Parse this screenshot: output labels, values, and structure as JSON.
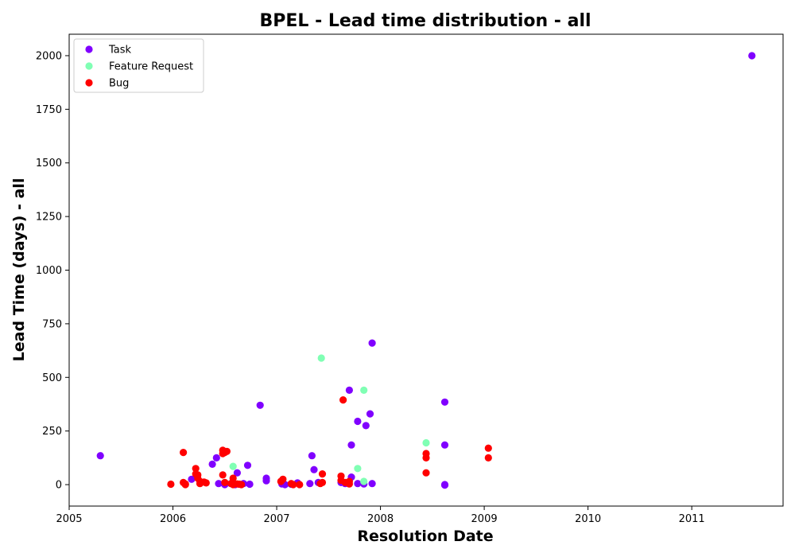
{
  "chart_data": {
    "type": "scatter",
    "title": "BPEL - Lead time distribution - all",
    "xlabel": "Resolution Date",
    "ylabel": "Lead Time (days) - all",
    "xlim": [
      2005.0,
      2011.88
    ],
    "ylim": [
      -100,
      2100
    ],
    "x_ticks": [
      2005,
      2006,
      2007,
      2008,
      2009,
      2010,
      2011
    ],
    "x_tick_labels": [
      "2005",
      "2006",
      "2007",
      "2008",
      "2009",
      "2010",
      "2011"
    ],
    "y_ticks": [
      0,
      250,
      500,
      750,
      1000,
      1250,
      1500,
      1750,
      2000
    ],
    "y_tick_labels": [
      "0",
      "250",
      "500",
      "750",
      "1000",
      "1250",
      "1500",
      "1750",
      "2000"
    ],
    "grid": false,
    "legend_position": "top-left",
    "series": [
      {
        "name": "Task",
        "color": "#8000ff",
        "points": [
          [
            2005.3,
            135
          ],
          [
            2006.18,
            25
          ],
          [
            2006.38,
            95
          ],
          [
            2006.42,
            125
          ],
          [
            2006.44,
            5
          ],
          [
            2006.5,
            0
          ],
          [
            2006.56,
            5
          ],
          [
            2006.6,
            0
          ],
          [
            2006.62,
            55
          ],
          [
            2006.68,
            5
          ],
          [
            2006.72,
            90
          ],
          [
            2006.74,
            2
          ],
          [
            2006.84,
            370
          ],
          [
            2006.9,
            30
          ],
          [
            2006.9,
            18
          ],
          [
            2007.05,
            3
          ],
          [
            2007.08,
            0
          ],
          [
            2007.14,
            2
          ],
          [
            2007.2,
            8
          ],
          [
            2007.32,
            5
          ],
          [
            2007.34,
            135
          ],
          [
            2007.36,
            70
          ],
          [
            2007.4,
            10
          ],
          [
            2007.62,
            10
          ],
          [
            2007.66,
            5
          ],
          [
            2007.7,
            440
          ],
          [
            2007.72,
            185
          ],
          [
            2007.72,
            35
          ],
          [
            2007.78,
            295
          ],
          [
            2007.78,
            5
          ],
          [
            2007.84,
            3
          ],
          [
            2007.86,
            275
          ],
          [
            2007.9,
            330
          ],
          [
            2007.92,
            660
          ],
          [
            2007.92,
            5
          ],
          [
            2008.62,
            385
          ],
          [
            2008.62,
            185
          ],
          [
            2008.62,
            0
          ],
          [
            2008.62,
            -2
          ],
          [
            2011.58,
            2000
          ]
        ]
      },
      {
        "name": "Feature Request",
        "color": "#80ffb4",
        "points": [
          [
            2006.58,
            85
          ],
          [
            2007.43,
            590
          ],
          [
            2007.78,
            75
          ],
          [
            2007.84,
            440
          ],
          [
            2007.84,
            15
          ],
          [
            2008.44,
            195
          ]
        ]
      },
      {
        "name": "Bug",
        "color": "#ff0000",
        "points": [
          [
            2005.98,
            2
          ],
          [
            2006.1,
            150
          ],
          [
            2006.1,
            10
          ],
          [
            2006.12,
            3
          ],
          [
            2006.12,
            0
          ],
          [
            2006.22,
            75
          ],
          [
            2006.22,
            50
          ],
          [
            2006.24,
            30
          ],
          [
            2006.24,
            45
          ],
          [
            2006.26,
            15
          ],
          [
            2006.26,
            5
          ],
          [
            2006.3,
            12
          ],
          [
            2006.32,
            8
          ],
          [
            2006.48,
            160
          ],
          [
            2006.48,
            145
          ],
          [
            2006.5,
            150
          ],
          [
            2006.52,
            155
          ],
          [
            2006.48,
            45
          ],
          [
            2006.5,
            10
          ],
          [
            2006.56,
            5
          ],
          [
            2006.58,
            30
          ],
          [
            2006.58,
            0
          ],
          [
            2006.62,
            3
          ],
          [
            2006.64,
            2
          ],
          [
            2006.66,
            0
          ],
          [
            2007.04,
            15
          ],
          [
            2007.06,
            25
          ],
          [
            2007.14,
            5
          ],
          [
            2007.16,
            0
          ],
          [
            2007.22,
            0
          ],
          [
            2007.42,
            5
          ],
          [
            2007.44,
            50
          ],
          [
            2007.44,
            10
          ],
          [
            2007.62,
            40
          ],
          [
            2007.62,
            20
          ],
          [
            2007.64,
            395
          ],
          [
            2007.66,
            10
          ],
          [
            2007.7,
            3
          ],
          [
            2007.7,
            15
          ],
          [
            2008.44,
            145
          ],
          [
            2008.44,
            125
          ],
          [
            2008.44,
            55
          ],
          [
            2009.04,
            170
          ],
          [
            2009.04,
            125
          ]
        ]
      }
    ]
  }
}
